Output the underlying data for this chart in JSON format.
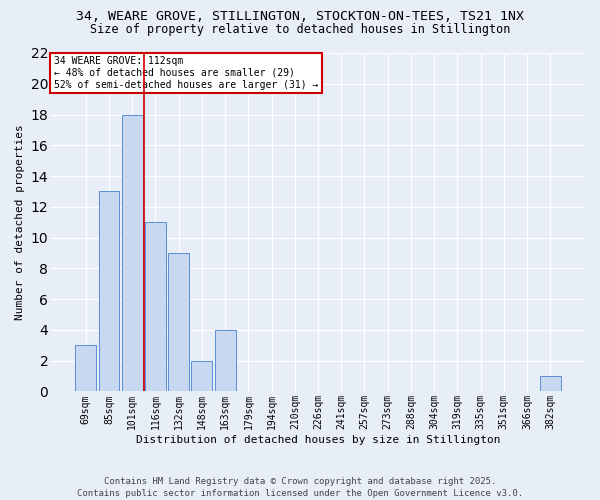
{
  "title_line1": "34, WEARE GROVE, STILLINGTON, STOCKTON-ON-TEES, TS21 1NX",
  "title_line2": "Size of property relative to detached houses in Stillington",
  "xlabel": "Distribution of detached houses by size in Stillington",
  "ylabel": "Number of detached properties",
  "categories": [
    "69sqm",
    "85sqm",
    "101sqm",
    "116sqm",
    "132sqm",
    "148sqm",
    "163sqm",
    "179sqm",
    "194sqm",
    "210sqm",
    "226sqm",
    "241sqm",
    "257sqm",
    "273sqm",
    "288sqm",
    "304sqm",
    "319sqm",
    "335sqm",
    "351sqm",
    "366sqm",
    "382sqm"
  ],
  "values": [
    3,
    13,
    18,
    11,
    9,
    2,
    4,
    0,
    0,
    0,
    0,
    0,
    0,
    0,
    0,
    0,
    0,
    0,
    0,
    0,
    1
  ],
  "bar_color": "#c8d8f0",
  "bar_edge_color": "#5b8fd4",
  "red_line_x": 2.5,
  "ylim": [
    0,
    22
  ],
  "yticks": [
    0,
    2,
    4,
    6,
    8,
    10,
    12,
    14,
    16,
    18,
    20,
    22
  ],
  "annotation_title": "34 WEARE GROVE: 112sqm",
  "annotation_line1": "← 48% of detached houses are smaller (29)",
  "annotation_line2": "52% of semi-detached houses are larger (31) →",
  "annotation_box_color": "#ffffff",
  "annotation_box_edge_color": "#cc0000",
  "footer_line1": "Contains HM Land Registry data © Crown copyright and database right 2025.",
  "footer_line2": "Contains public sector information licensed under the Open Government Licence v3.0.",
  "bg_color": "#e8eef8",
  "grid_color": "#ffffff",
  "title_fontsize": 9.5,
  "subtitle_fontsize": 8.5,
  "tick_fontsize": 7,
  "label_fontsize": 8,
  "ylabel_fontsize": 8,
  "footer_fontsize": 6.5,
  "annotation_fontsize": 7
}
